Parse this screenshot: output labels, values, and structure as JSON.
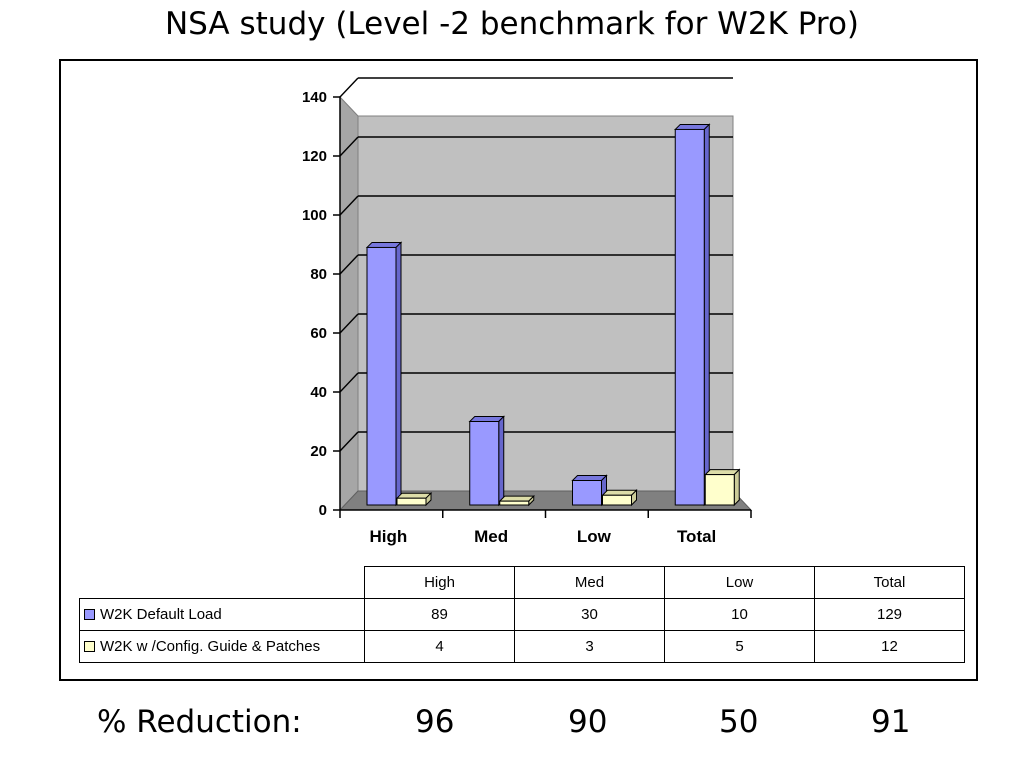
{
  "title": "NSA study (Level -2 benchmark for W2K Pro)",
  "chart_data": {
    "type": "bar",
    "categories": [
      "High",
      "Med",
      "Low",
      "Total"
    ],
    "series": [
      {
        "name": "W2K Default Load",
        "values": [
          89,
          30,
          10,
          129
        ],
        "color": "#9999ff"
      },
      {
        "name": "W2K w/Config. Guide & Patches",
        "values": [
          4,
          3,
          5,
          12
        ],
        "color": "#ffffcc"
      }
    ],
    "ylim": [
      0,
      140
    ],
    "yticks": [
      "0",
      "20",
      "40",
      "60",
      "80",
      "100",
      "120",
      "140"
    ],
    "grid": true,
    "legend": "data-table"
  },
  "table": {
    "headers": [
      "High",
      "Med",
      "Low",
      "Total"
    ],
    "rows": [
      {
        "label": "W2K Default Load",
        "values": [
          "89",
          "30",
          "10",
          "129"
        ]
      },
      {
        "label": "W2K w /Config. Guide & Patches",
        "values": [
          "4",
          "3",
          "5",
          "12"
        ]
      }
    ]
  },
  "reduction": {
    "label": "% Reduction:",
    "values": [
      "96",
      "90",
      "50",
      "91"
    ]
  }
}
